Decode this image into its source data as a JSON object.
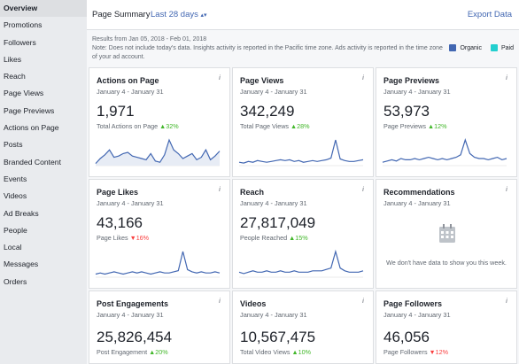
{
  "sidebar": {
    "items": [
      {
        "label": "Overview",
        "active": true
      },
      {
        "label": "Promotions"
      },
      {
        "label": "Followers"
      },
      {
        "label": "Likes"
      },
      {
        "label": "Reach"
      },
      {
        "label": "Page Views"
      },
      {
        "label": "Page Previews"
      },
      {
        "label": "Actions on Page"
      },
      {
        "label": "Posts"
      },
      {
        "label": "Branded Content"
      },
      {
        "label": "Events"
      },
      {
        "label": "Videos"
      },
      {
        "label": "Ad Breaks"
      },
      {
        "label": "People"
      },
      {
        "label": "Local"
      },
      {
        "label": "Messages"
      },
      {
        "label": "Orders"
      }
    ]
  },
  "header": {
    "title": "Page Summary",
    "range": "Last 28 days",
    "export": "Export Data"
  },
  "notes": {
    "results": "Results from Jan 05, 2018 - Feb 01, 2018",
    "note": "Note: Does not include today's data. Insights activity is reported in the Pacific time zone. Ads activity is reported in the time zone of your ad account."
  },
  "legend": {
    "organic": "Organic",
    "paid": "Paid",
    "organic_color": "#4267b2",
    "paid_color": "#23cfcf"
  },
  "cards": [
    {
      "title": "Actions on Page",
      "range": "January 4 - January 31",
      "value": "1,971",
      "sub": "Total Actions on Page",
      "delta": "32%",
      "dir": "up",
      "chart": [
        1,
        5,
        8,
        12,
        6,
        7,
        9,
        10,
        7,
        6,
        5,
        4,
        9,
        3,
        2,
        8,
        20,
        12,
        9,
        5,
        7,
        9,
        4,
        6,
        12,
        4,
        7,
        11
      ],
      "area": true
    },
    {
      "title": "Page Views",
      "range": "January 4 - January 31",
      "value": "342,249",
      "sub": "Total Page Views",
      "delta": "28%",
      "dir": "up",
      "chart": [
        3,
        2,
        4,
        3,
        5,
        4,
        3,
        4,
        5,
        6,
        5,
        6,
        4,
        5,
        3,
        4,
        5,
        4,
        5,
        6,
        8,
        30,
        7,
        5,
        4,
        4,
        5,
        6
      ],
      "area": false
    },
    {
      "title": "Page Previews",
      "range": "January 4 - January 31",
      "value": "53,973",
      "sub": "Page Previews",
      "delta": "12%",
      "dir": "up",
      "chart": [
        2,
        3,
        4,
        3,
        5,
        4,
        4,
        5,
        4,
        5,
        6,
        5,
        4,
        5,
        4,
        5,
        6,
        8,
        20,
        9,
        6,
        5,
        5,
        4,
        5,
        6,
        4,
        5
      ],
      "area": false
    },
    {
      "title": "Page Likes",
      "range": "January 4 - January 31",
      "value": "43,166",
      "sub": "Page Likes",
      "delta": "16%",
      "dir": "down",
      "chart": [
        2,
        3,
        2,
        3,
        4,
        3,
        2,
        3,
        4,
        3,
        4,
        3,
        2,
        3,
        4,
        3,
        3,
        4,
        5,
        22,
        6,
        4,
        3,
        4,
        3,
        3,
        4,
        3
      ],
      "area": false
    },
    {
      "title": "Reach",
      "range": "January 4 - January 31",
      "value": "27,817,049",
      "sub": "People Reached",
      "delta": "15%",
      "dir": "up",
      "chart": [
        3,
        2,
        3,
        4,
        3,
        3,
        4,
        3,
        3,
        4,
        3,
        3,
        4,
        3,
        3,
        3,
        4,
        4,
        4,
        5,
        6,
        18,
        6,
        4,
        3,
        3,
        3,
        4
      ],
      "area": false
    },
    {
      "title": "Recommendations",
      "range": "January 4 - January 31",
      "message": "We don't have data to show you this week."
    },
    {
      "title": "Post Engagements",
      "range": "January 4 - January 31",
      "value": "25,826,454",
      "sub": "Post Engagement",
      "delta": "20%",
      "dir": "up"
    },
    {
      "title": "Videos",
      "range": "January 4 - January 31",
      "value": "10,567,475",
      "sub": "Total Video Views",
      "delta": "10%",
      "dir": "up"
    },
    {
      "title": "Page Followers",
      "range": "January 4 - January 31",
      "value": "46,056",
      "sub": "Page Followers",
      "delta": "12%",
      "dir": "down"
    }
  ]
}
